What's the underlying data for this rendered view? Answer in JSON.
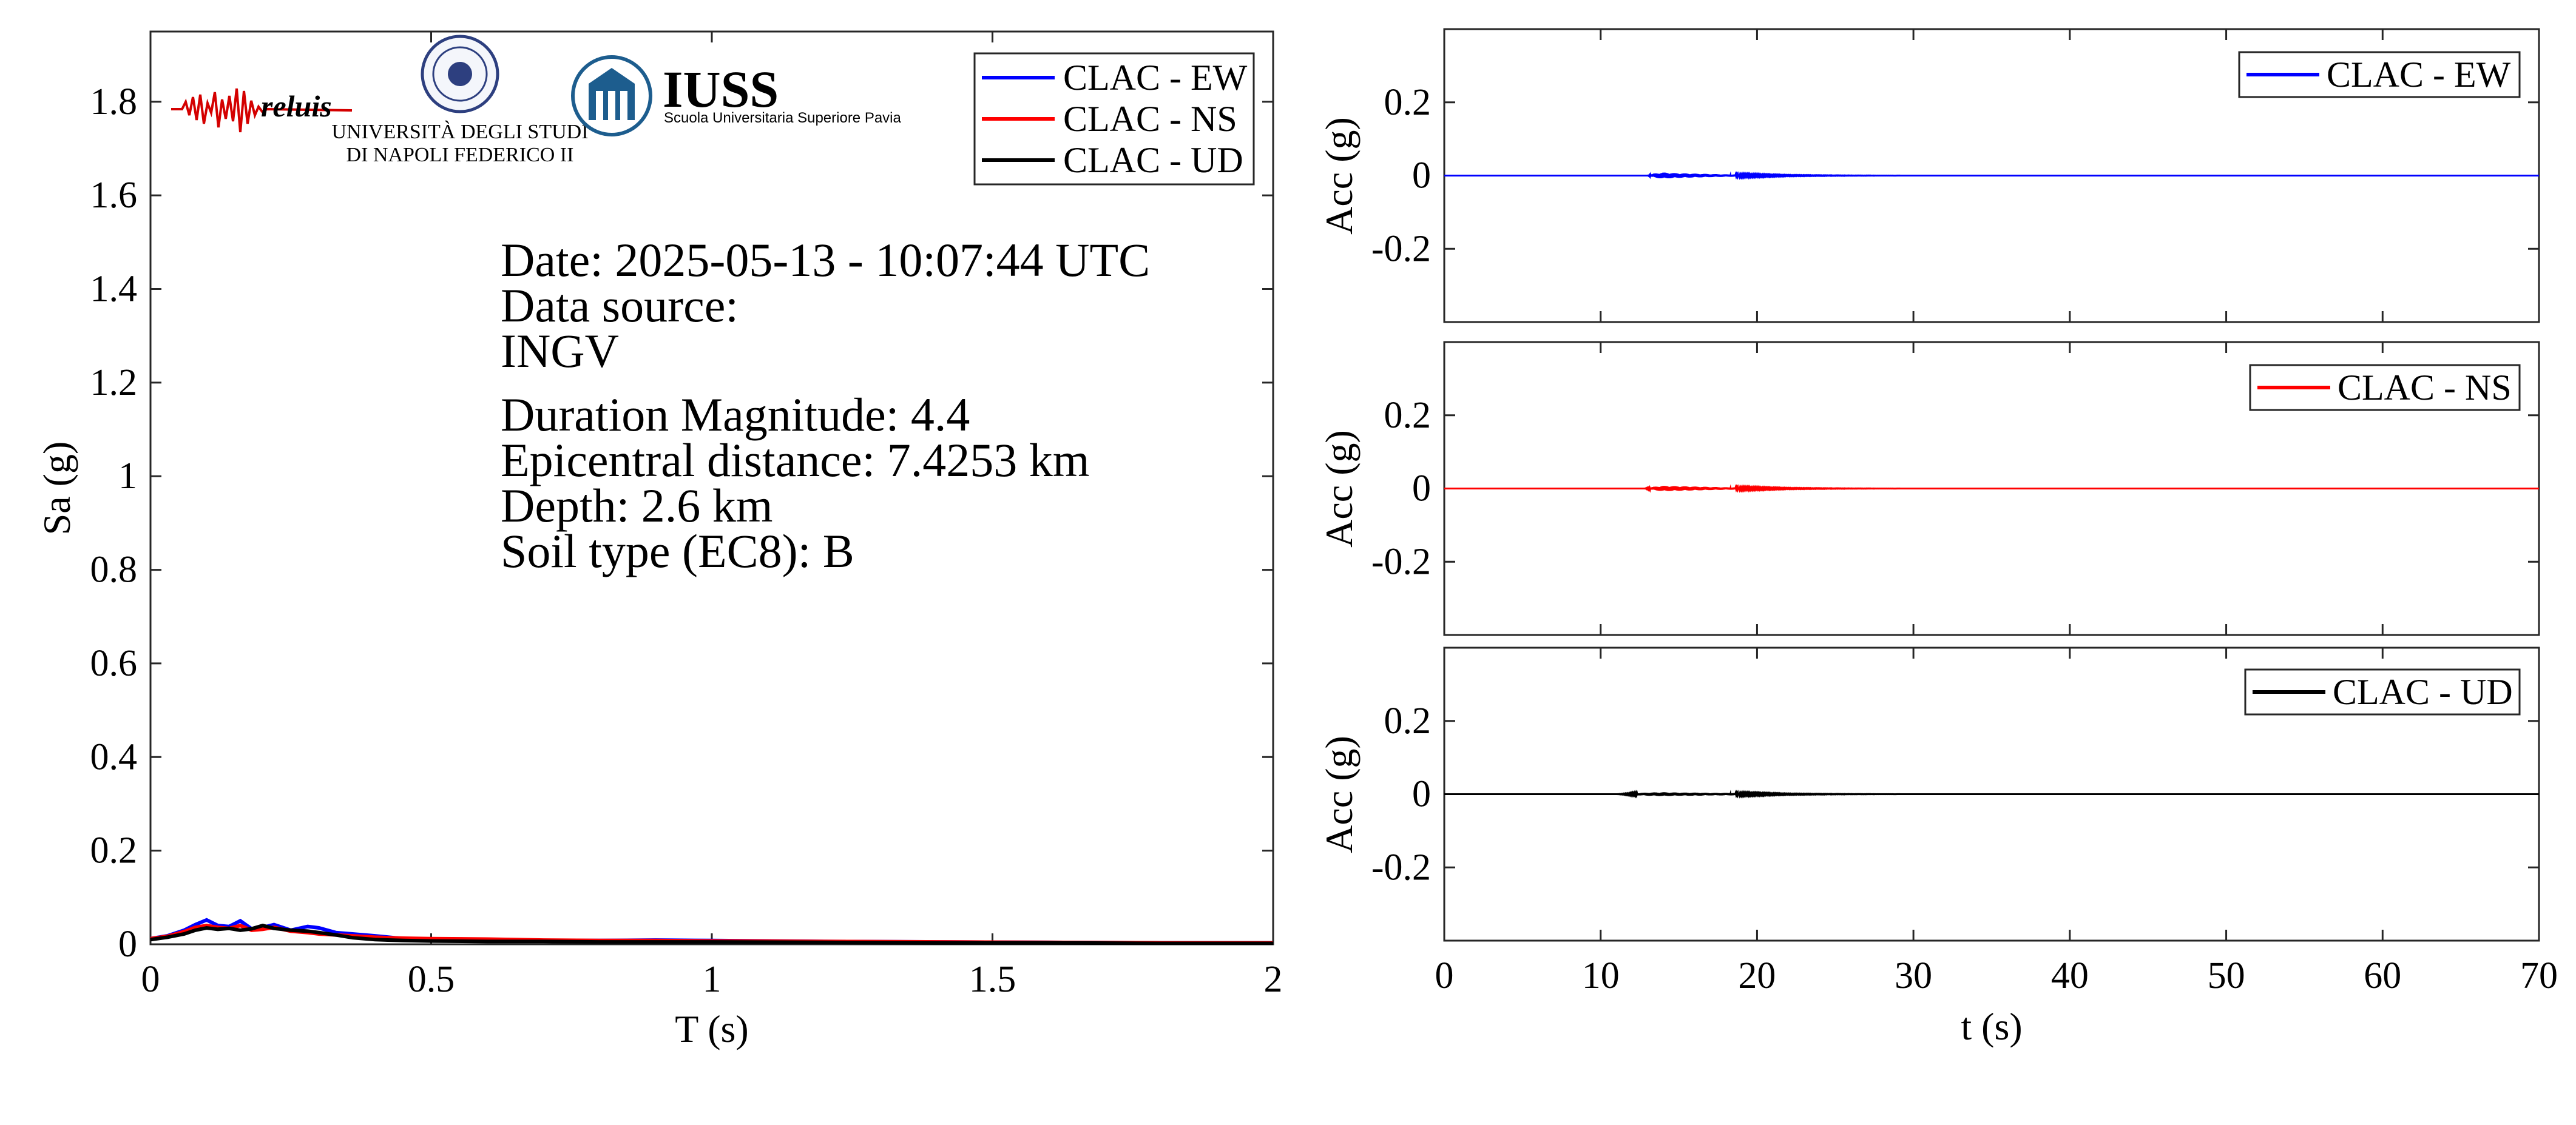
{
  "logos": {
    "reluis_text": "reluis",
    "unina_line1": "UNIVERSITÀ DEGLI STUDI",
    "unina_line2": "DI NAPOLI FEDERICO II",
    "iuss_title": "IUSS",
    "iuss_subtitle": "Scuola Universitaria Superiore Pavia"
  },
  "info": {
    "date": "Date: 2025-05-13 - 10:07:44 UTC",
    "source_label": "Data source:",
    "source_value": "INGV",
    "magnitude": "Duration Magnitude: 4.4",
    "distance": "Epicentral distance: 7.4253 km",
    "depth": "Depth: 2.6 km",
    "soil": "Soil type (EC8): B"
  },
  "colors": {
    "ew": "#0000ff",
    "ns": "#ff0000",
    "ud": "#000000"
  },
  "chart_data": [
    {
      "type": "line",
      "xlabel": "T (s)",
      "ylabel": "Sa (g)",
      "xlim": [
        0,
        2
      ],
      "ylim": [
        0,
        1.95
      ],
      "xticks": [
        0,
        0.5,
        1,
        1.5,
        2
      ],
      "xtick_labels": [
        "0",
        "0.5",
        "1",
        "1.5",
        "2"
      ],
      "yticks": [
        0,
        0.2,
        0.4,
        0.6,
        0.8,
        1,
        1.2,
        1.4,
        1.6,
        1.8
      ],
      "ytick_labels": [
        "0",
        "0.2",
        "0.4",
        "0.6",
        "0.8",
        "1",
        "1.2",
        "1.4",
        "1.6",
        "1.8"
      ],
      "legend": "top-right",
      "series": [
        {
          "name": "CLAC - EW",
          "color": "#0000ff",
          "x": [
            0,
            0.03,
            0.06,
            0.08,
            0.1,
            0.12,
            0.14,
            0.16,
            0.18,
            0.2,
            0.22,
            0.25,
            0.28,
            0.3,
            0.33,
            0.36,
            0.4,
            0.45,
            0.5,
            0.6,
            0.7,
            0.8,
            0.9,
            1.0,
            1.2,
            1.4,
            1.6,
            1.8,
            2.0
          ],
          "y": [
            0.012,
            0.018,
            0.03,
            0.042,
            0.052,
            0.04,
            0.038,
            0.05,
            0.033,
            0.036,
            0.042,
            0.03,
            0.038,
            0.035,
            0.025,
            0.022,
            0.018,
            0.012,
            0.01,
            0.01,
            0.008,
            0.008,
            0.009,
            0.008,
            0.006,
            0.005,
            0.004,
            0.003,
            0.003
          ]
        },
        {
          "name": "CLAC - NS",
          "color": "#ff0000",
          "x": [
            0,
            0.03,
            0.06,
            0.08,
            0.1,
            0.12,
            0.14,
            0.16,
            0.18,
            0.2,
            0.22,
            0.25,
            0.28,
            0.3,
            0.33,
            0.36,
            0.4,
            0.45,
            0.5,
            0.6,
            0.7,
            0.8,
            0.9,
            1.0,
            1.2,
            1.4,
            1.6,
            1.8,
            2.0
          ],
          "y": [
            0.012,
            0.017,
            0.027,
            0.036,
            0.04,
            0.036,
            0.034,
            0.04,
            0.03,
            0.032,
            0.036,
            0.028,
            0.025,
            0.022,
            0.02,
            0.018,
            0.015,
            0.013,
            0.012,
            0.011,
            0.009,
            0.008,
            0.008,
            0.007,
            0.006,
            0.005,
            0.004,
            0.003,
            0.003
          ]
        },
        {
          "name": "CLAC - UD",
          "color": "#000000",
          "x": [
            0,
            0.03,
            0.06,
            0.08,
            0.1,
            0.12,
            0.14,
            0.16,
            0.18,
            0.2,
            0.22,
            0.25,
            0.28,
            0.3,
            0.33,
            0.36,
            0.4,
            0.45,
            0.5,
            0.6,
            0.7,
            0.8,
            0.9,
            1.0,
            1.2,
            1.4,
            1.6,
            1.8,
            2.0
          ],
          "y": [
            0.01,
            0.015,
            0.022,
            0.03,
            0.035,
            0.032,
            0.034,
            0.03,
            0.033,
            0.04,
            0.034,
            0.03,
            0.028,
            0.025,
            0.02,
            0.014,
            0.01,
            0.008,
            0.007,
            0.006,
            0.006,
            0.005,
            0.005,
            0.005,
            0.004,
            0.003,
            0.003,
            0.002,
            0.002
          ]
        }
      ]
    },
    {
      "type": "line",
      "xlabel": "",
      "ylabel": "Acc (g)",
      "xlim": [
        0,
        70
      ],
      "ylim": [
        -0.4,
        0.4
      ],
      "yticks": [
        -0.2,
        0,
        0.2
      ],
      "ytick_labels": [
        "-0.2",
        "0",
        "0.2"
      ],
      "legend": "top-right",
      "series": [
        {
          "name": "CLAC - EW",
          "color": "#0000ff",
          "x": [
            0,
            13,
            13.5,
            14,
            15,
            16,
            17,
            18,
            20,
            22,
            25,
            30,
            70
          ],
          "y": [
            0,
            0,
            0.006,
            0.008,
            0.006,
            0.005,
            0.004,
            0.003,
            0.002,
            0.001,
            0.0005,
            0,
            0
          ]
        }
      ]
    },
    {
      "type": "line",
      "xlabel": "",
      "ylabel": "Acc (g)",
      "xlim": [
        0,
        70
      ],
      "ylim": [
        -0.4,
        0.4
      ],
      "yticks": [
        -0.2,
        0,
        0.2
      ],
      "ytick_labels": [
        "-0.2",
        "0",
        "0.2"
      ],
      "legend": "top-right",
      "series": [
        {
          "name": "CLAC - NS",
          "color": "#ff0000",
          "x": [
            0,
            12.8,
            13.5,
            14,
            15,
            16,
            17,
            18,
            20,
            22,
            25,
            30,
            70
          ],
          "y": [
            0,
            0,
            0.005,
            0.007,
            0.006,
            0.005,
            0.004,
            0.003,
            0.002,
            0.001,
            0.0005,
            0,
            0
          ]
        }
      ]
    },
    {
      "type": "line",
      "xlabel": "t (s)",
      "ylabel": "Acc (g)",
      "xlim": [
        0,
        70
      ],
      "ylim": [
        -0.4,
        0.4
      ],
      "xticks": [
        0,
        10,
        20,
        30,
        40,
        50,
        60,
        70
      ],
      "xtick_labels": [
        "0",
        "10",
        "20",
        "30",
        "40",
        "50",
        "60",
        "70"
      ],
      "yticks": [
        -0.2,
        0,
        0.2
      ],
      "ytick_labels": [
        "-0.2",
        "0",
        "0.2"
      ],
      "legend": "top-right",
      "series": [
        {
          "name": "CLAC - UD",
          "color": "#000000",
          "x": [
            0,
            11,
            12,
            13,
            14,
            15,
            16,
            17,
            18,
            20,
            22,
            25,
            30,
            70
          ],
          "y": [
            0,
            0,
            0.002,
            0.004,
            0.005,
            0.004,
            0.004,
            0.003,
            0.003,
            0.002,
            0.001,
            0.0005,
            0,
            0
          ]
        }
      ]
    }
  ]
}
